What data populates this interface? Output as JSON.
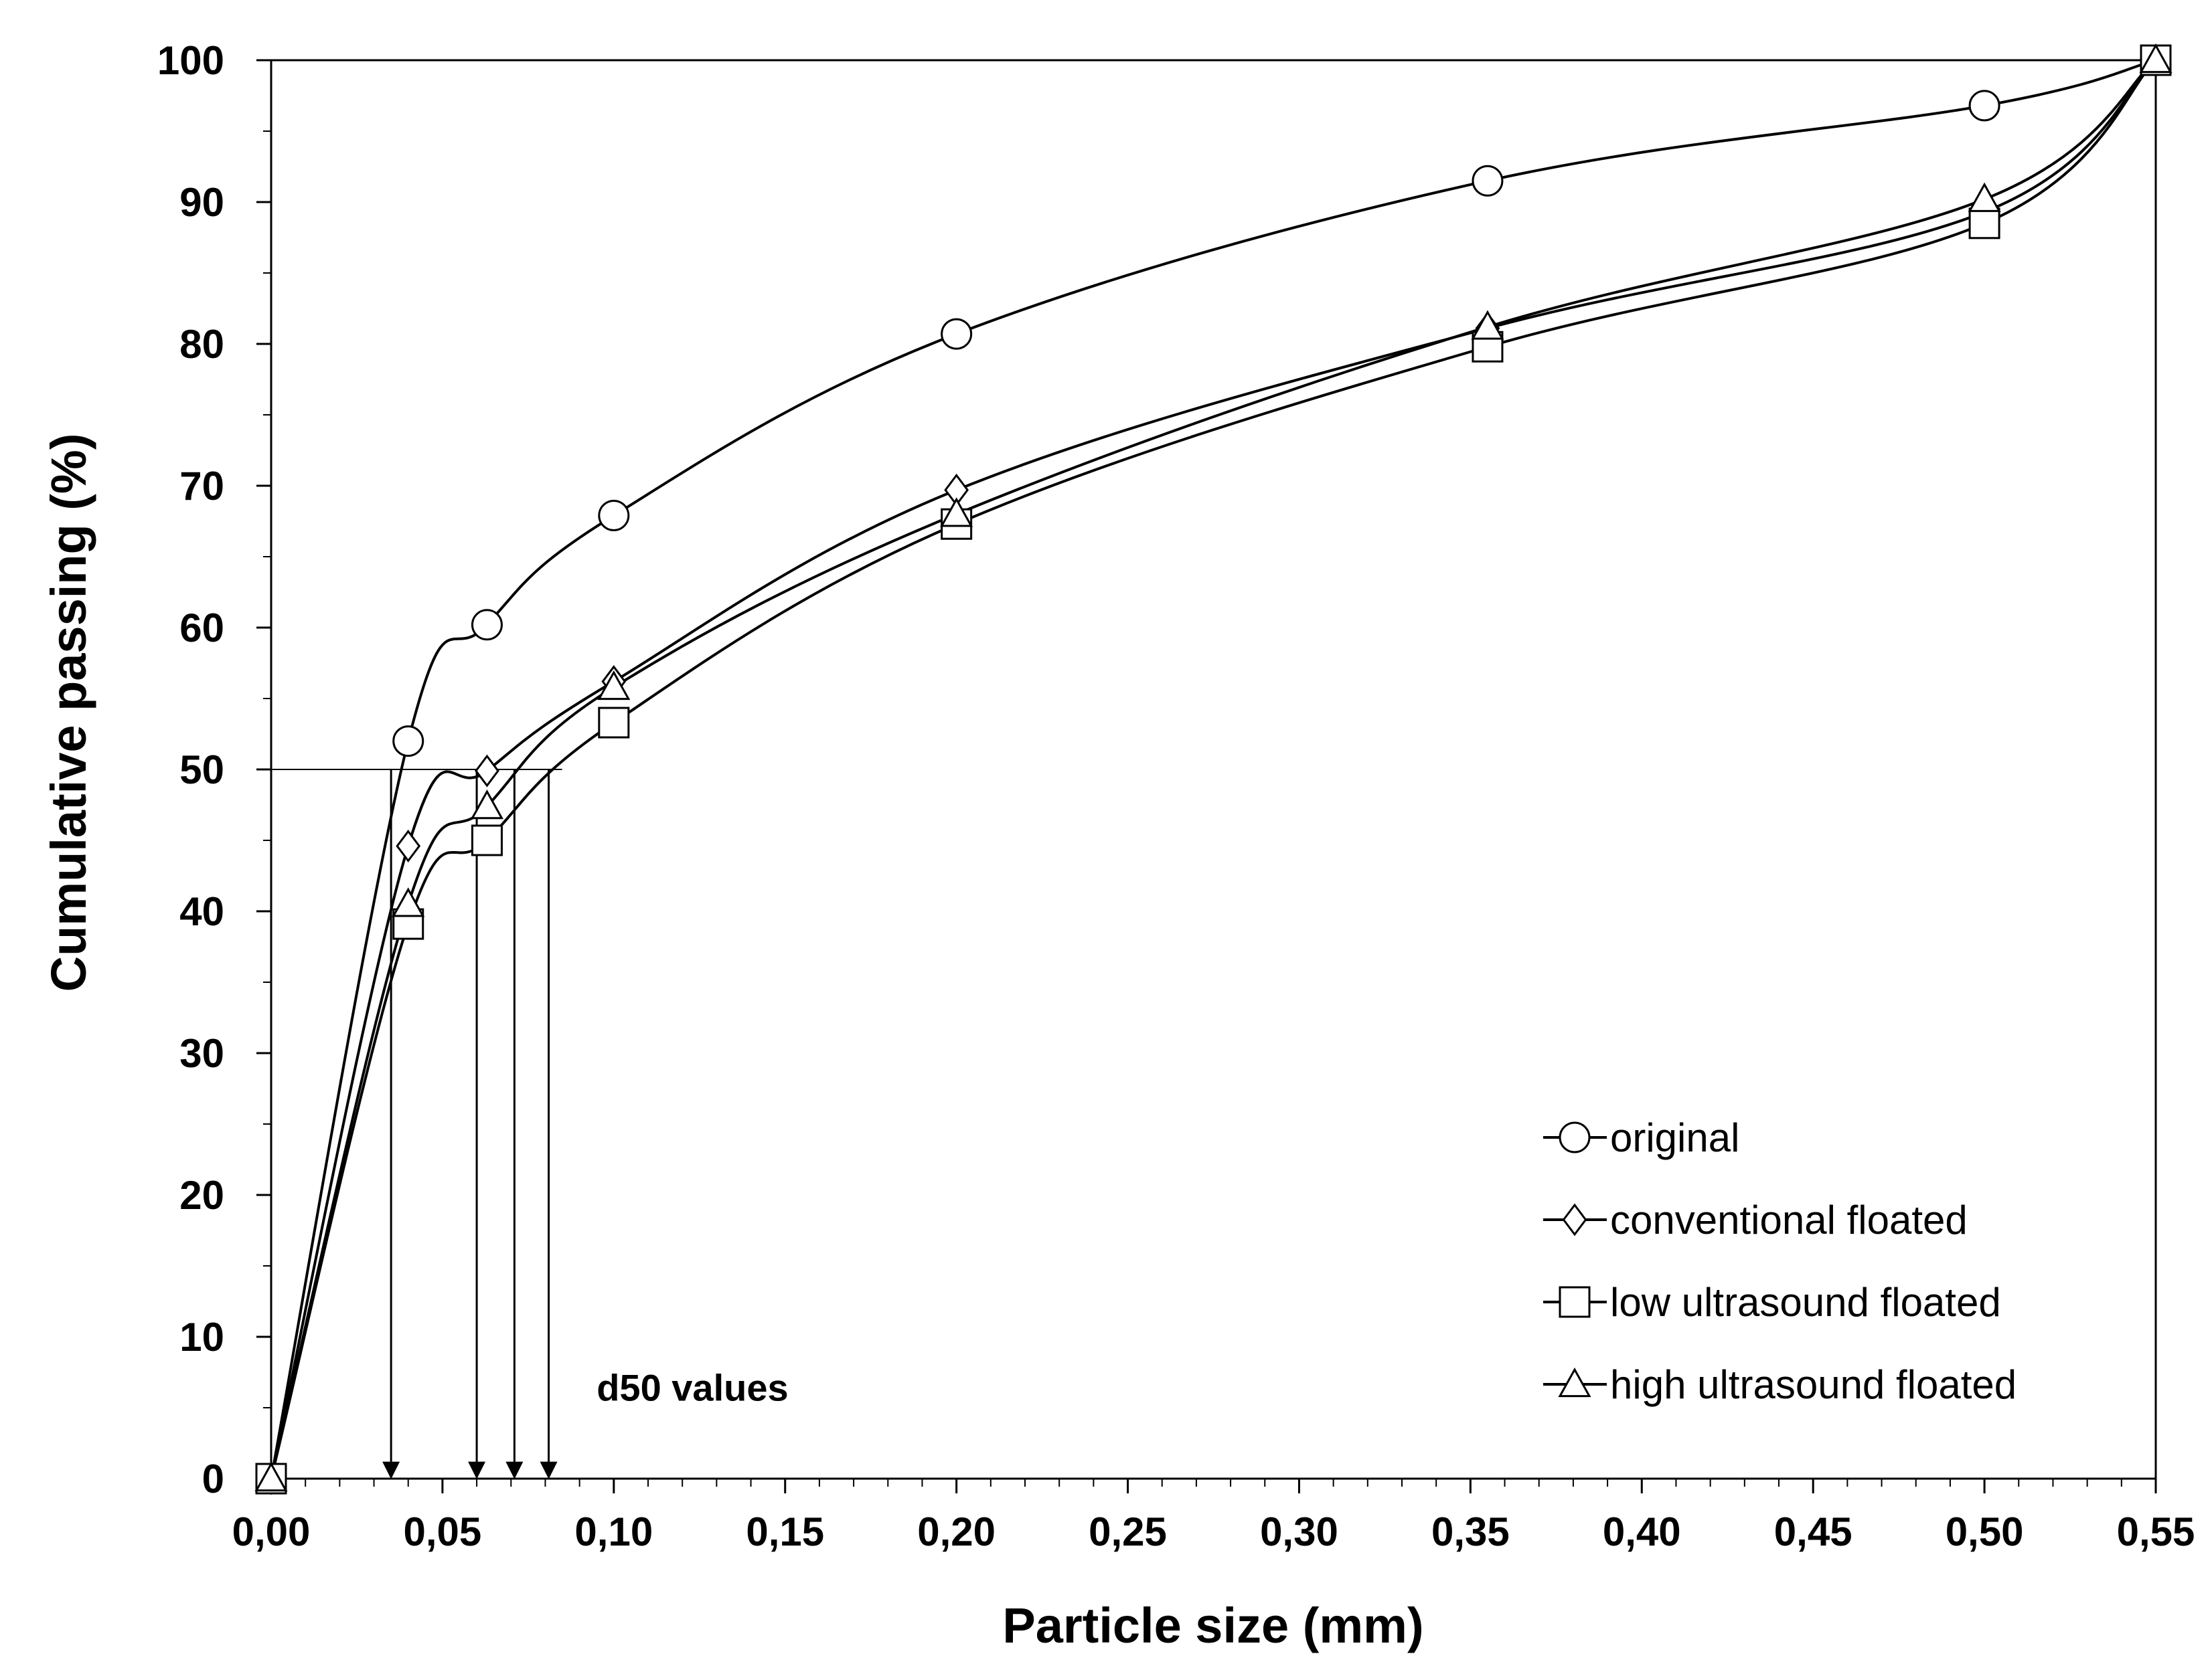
{
  "chart_data": {
    "type": "line",
    "xlabel": "Particle size (mm)",
    "ylabel": "Cumulative passing (%)",
    "xlim": [
      0,
      0.55
    ],
    "ylim": [
      0,
      100
    ],
    "x_ticks": [
      "0,00",
      "0,05",
      "0,10",
      "0,15",
      "0,20",
      "0,25",
      "0,30",
      "0,35",
      "0,40",
      "0,45",
      "0,50",
      "0,55"
    ],
    "y_ticks": [
      "0",
      "10",
      "20",
      "30",
      "40",
      "50",
      "60",
      "70",
      "80",
      "90",
      "100"
    ],
    "grid": false,
    "legend_position": "bottom-right",
    "series": [
      {
        "name": "original",
        "marker": "circle",
        "points": [
          [
            0,
            0
          ],
          [
            0.04,
            52
          ],
          [
            0.063,
            60.2
          ],
          [
            0.1,
            67.9
          ],
          [
            0.2,
            80.7
          ],
          [
            0.355,
            91.5
          ],
          [
            0.5,
            96.8
          ],
          [
            0.55,
            100
          ]
        ]
      },
      {
        "name": "conventional floated",
        "marker": "diamond",
        "points": [
          [
            0,
            0
          ],
          [
            0.04,
            44.6
          ],
          [
            0.063,
            49.9
          ],
          [
            0.1,
            56.2
          ],
          [
            0.2,
            69.7
          ],
          [
            0.355,
            81.1
          ],
          [
            0.5,
            89.3
          ],
          [
            0.55,
            100
          ]
        ]
      },
      {
        "name": "low ultrasound floated",
        "marker": "square",
        "points": [
          [
            0,
            0
          ],
          [
            0.04,
            39.1
          ],
          [
            0.063,
            45
          ],
          [
            0.1,
            53.3
          ],
          [
            0.2,
            67.3
          ],
          [
            0.355,
            79.8
          ],
          [
            0.5,
            88.5
          ],
          [
            0.55,
            100
          ]
        ]
      },
      {
        "name": "high ultrasound floated",
        "marker": "triangle",
        "points": [
          [
            0,
            0
          ],
          [
            0.04,
            40.5
          ],
          [
            0.063,
            47.4
          ],
          [
            0.1,
            55.8
          ],
          [
            0.2,
            68
          ],
          [
            0.355,
            81.2
          ],
          [
            0.5,
            90.2
          ],
          [
            0.55,
            100
          ]
        ]
      }
    ],
    "reference_line_y": 50,
    "d50_values": [
      0.035,
      0.06,
      0.071,
      0.081
    ],
    "annotations": [
      {
        "text": "d50 values",
        "x": 0.095,
        "y": 5.5
      }
    ]
  }
}
